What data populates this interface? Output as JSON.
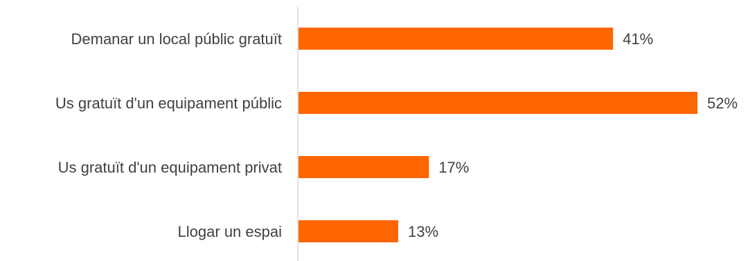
{
  "chart_data": {
    "type": "bar",
    "orientation": "horizontal",
    "categories": [
      "Demanar un local públic gratuït",
      "Us gratuït d'un equipament públic",
      "Us gratuït d'un equipament privat",
      "Llogar un espai"
    ],
    "values": [
      41,
      52,
      17,
      13
    ],
    "value_labels": [
      "41%",
      "52%",
      "17%",
      "13%"
    ],
    "xlim": [
      0,
      52
    ],
    "unit": "%",
    "grid": false,
    "legend": "none",
    "colors": {
      "bar": "#ff6600",
      "axis": "#d9d9d9",
      "text": "#404040"
    }
  }
}
